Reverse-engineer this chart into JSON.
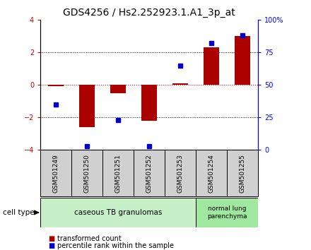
{
  "title": "GDS4256 / Hs2.252923.1.A1_3p_at",
  "samples": [
    "GSM501249",
    "GSM501250",
    "GSM501251",
    "GSM501252",
    "GSM501253",
    "GSM501254",
    "GSM501255"
  ],
  "transformed_counts": [
    -0.07,
    -2.6,
    -0.5,
    -2.2,
    0.1,
    2.3,
    3.0
  ],
  "percentile_ranks": [
    35,
    3,
    23,
    3,
    65,
    82,
    88
  ],
  "ylim_left": [
    -4,
    4
  ],
  "ylim_right": [
    0,
    100
  ],
  "left_yticks": [
    -4,
    -2,
    0,
    2,
    4
  ],
  "right_yticks": [
    0,
    25,
    50,
    75,
    100
  ],
  "right_yticklabels": [
    "0",
    "25",
    "50",
    "75",
    "100%"
  ],
  "bar_color": "#aa0000",
  "dot_color": "#0000cc",
  "bar_width": 0.5,
  "group1_label": "caseous TB granulomas",
  "group2_label": "normal lung\nparenchyma",
  "group1_color": "#c8f0c8",
  "group2_color": "#a0e8a0",
  "cell_type_label": "cell type",
  "legend1_label": "transformed count",
  "legend2_label": "percentile rank within the sample",
  "sample_box_color": "#d0d0d0",
  "bg_color": "#ffffff",
  "zero_line_color": "#cc0000",
  "dotted_line_color": "#000000",
  "title_fontsize": 10,
  "tick_fontsize": 7,
  "label_fontsize": 7,
  "left_tick_color": "#cc0000"
}
